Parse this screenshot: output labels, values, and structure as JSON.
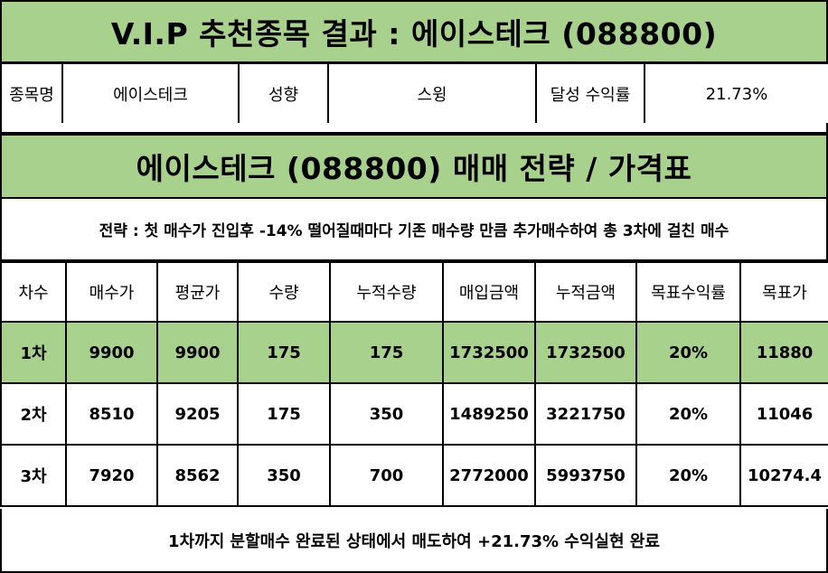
{
  "title": "V.I.P 추천종목 결과 : 에이스테크 (088800)",
  "info": {
    "stock_name_label": "종목명",
    "stock_name_value": "에이스테크",
    "style_label": "성향",
    "style_value": "스윙",
    "achieved_return_label": "달성 수익률",
    "achieved_return_value": "21.73%"
  },
  "strategy_title": "에이스테크 (088800) 매매 전략 / 가격표",
  "strategy_text": "전략 : 첫 매수가 진입후 -14% 떨어질때마다 기존 매수량 만큼 추가매수하여 총 3차에 걸친 매수",
  "table": {
    "headers": [
      "차수",
      "매수가",
      "평균가",
      "수량",
      "누적수량",
      "매입금액",
      "누적금액",
      "목표수익률",
      "목표가"
    ],
    "rows": [
      [
        "1차",
        "9900",
        "9900",
        "175",
        "175",
        "1732500",
        "1732500",
        "20%",
        "11880"
      ],
      [
        "2차",
        "8510",
        "9205",
        "175",
        "350",
        "1489250",
        "3221750",
        "20%",
        "11046"
      ],
      [
        "3차",
        "7920",
        "8562",
        "350",
        "700",
        "2772000",
        "5993750",
        "20%",
        "10274.4"
      ]
    ]
  },
  "footer_text": "1차까지 분할매수 완료된 상태에서 매도하여 +21.73% 수익실현 완료",
  "colors": {
    "highlight_green": "#a9d18e",
    "border": "#000000"
  }
}
